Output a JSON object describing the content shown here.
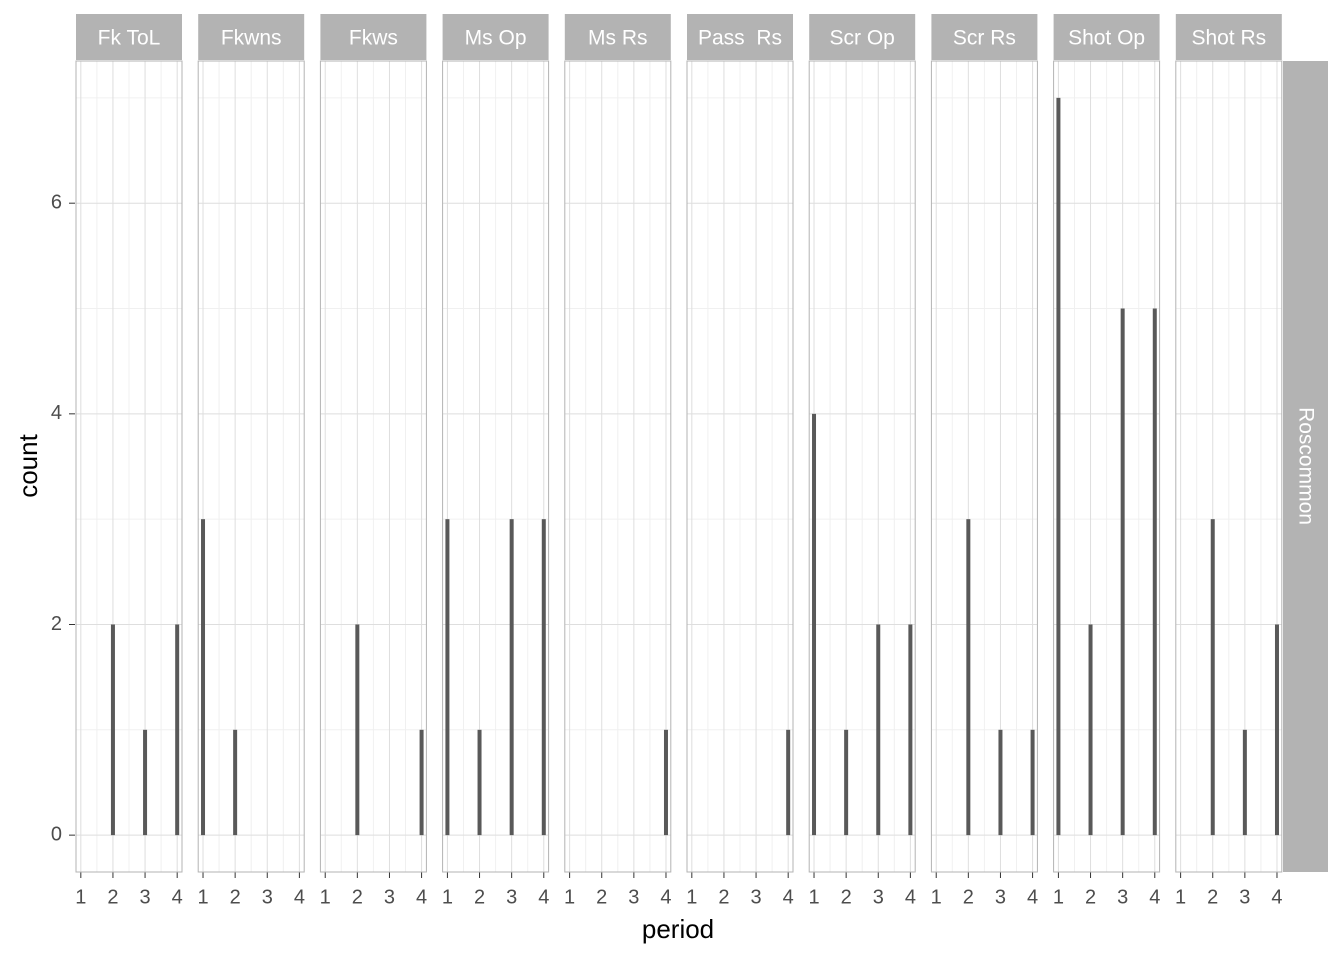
{
  "chart_data": {
    "type": "bar",
    "xlabel": "period",
    "ylabel": "count",
    "row_strip": "Roscommon",
    "color": "#595959",
    "xlim": [
      0.85,
      4.15
    ],
    "xticks": [
      1,
      2,
      3,
      4
    ],
    "xminor": [
      1.5,
      2.5,
      3.5
    ],
    "ylim": [
      -0.35,
      7.35
    ],
    "yticks": [
      0,
      2,
      4,
      6
    ],
    "yminor": [
      1,
      3,
      5,
      7
    ],
    "grid": true,
    "facets": [
      {
        "title": "Fk ToL",
        "x": [
          2,
          3,
          4
        ],
        "values": [
          2,
          1,
          2
        ]
      },
      {
        "title": "Fkwns",
        "x": [
          1,
          2
        ],
        "values": [
          3,
          1
        ]
      },
      {
        "title": "Fkws",
        "x": [
          2,
          4
        ],
        "values": [
          2,
          1
        ]
      },
      {
        "title": "Ms Op",
        "x": [
          1,
          2,
          3,
          4
        ],
        "values": [
          3,
          1,
          3,
          3
        ]
      },
      {
        "title": "Ms Rs",
        "x": [
          4
        ],
        "values": [
          1
        ]
      },
      {
        "title": "Pass  Rs",
        "x": [
          4
        ],
        "values": [
          1
        ]
      },
      {
        "title": "Scr Op",
        "x": [
          1,
          2,
          3,
          4
        ],
        "values": [
          4,
          1,
          2,
          2
        ]
      },
      {
        "title": "Scr Rs",
        "x": [
          2,
          3,
          4
        ],
        "values": [
          3,
          1,
          1
        ]
      },
      {
        "title": "Shot Op",
        "x": [
          1,
          2,
          3,
          4
        ],
        "values": [
          7,
          2,
          5,
          5
        ]
      },
      {
        "title": "Shot Rs",
        "x": [
          2,
          3,
          4
        ],
        "values": [
          3,
          1,
          2
        ]
      }
    ]
  }
}
